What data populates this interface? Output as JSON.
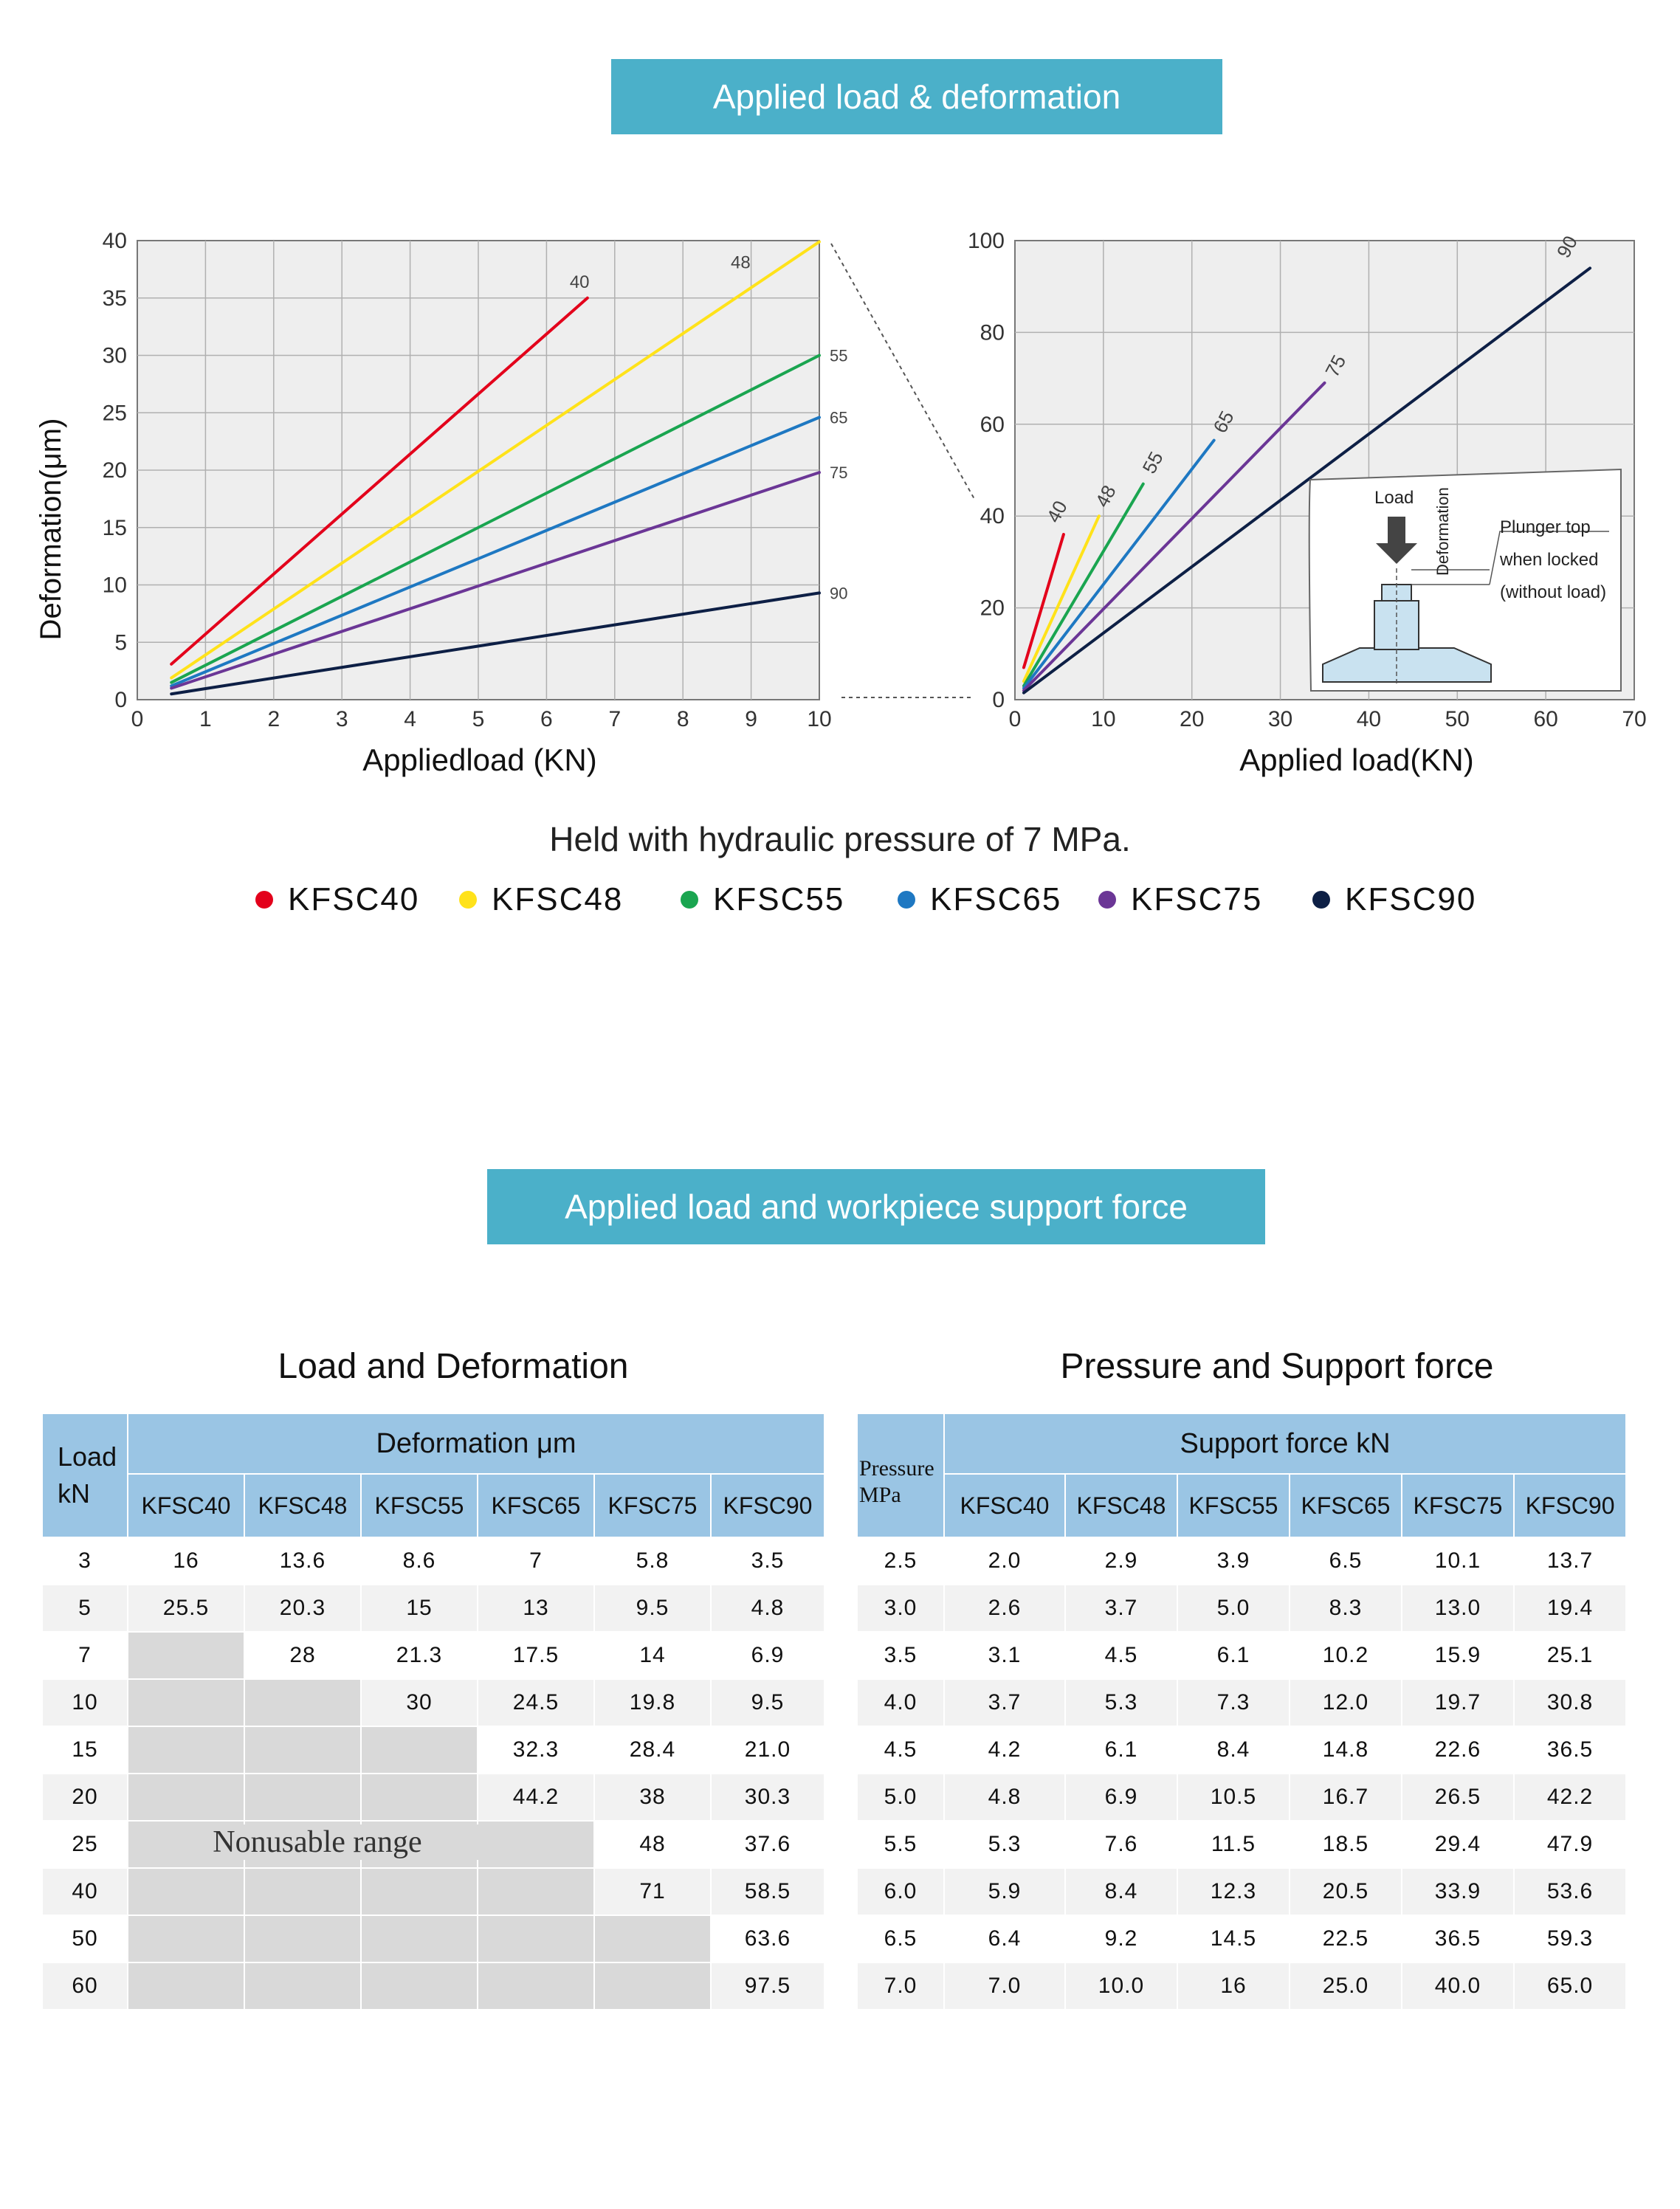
{
  "banners": {
    "deformation": "Applied load & deformation",
    "support": "Applied load and workpiece support force"
  },
  "chart_data": [
    {
      "type": "line",
      "xlabel": "Appliedload (KN)",
      "ylabel": "Deformation(μm)",
      "xlim": [
        0,
        10
      ],
      "ylim": [
        0,
        40
      ],
      "xticks": [
        0,
        1,
        2,
        3,
        4,
        5,
        6,
        7,
        8,
        9,
        10
      ],
      "yticks": [
        0,
        5,
        10,
        15,
        20,
        25,
        30,
        35,
        40
      ],
      "grid": true,
      "series": [
        {
          "name": "40",
          "color": "#e3001b",
          "x": [
            0.5,
            6.6
          ],
          "y": [
            3.1,
            35
          ]
        },
        {
          "name": "48",
          "color": "#ffe21a",
          "x": [
            0.5,
            10
          ],
          "y": [
            1.9,
            39.9
          ]
        },
        {
          "name": "55",
          "color": "#1aa550",
          "x": [
            0.5,
            10
          ],
          "y": [
            1.5,
            30
          ]
        },
        {
          "name": "65",
          "color": "#1e78c2",
          "x": [
            0.5,
            10
          ],
          "y": [
            1.2,
            24.6
          ]
        },
        {
          "name": "75",
          "color": "#6b3696",
          "x": [
            0.5,
            10
          ],
          "y": [
            1.0,
            19.8
          ]
        },
        {
          "name": "90",
          "color": "#0d1f45",
          "x": [
            0.5,
            10
          ],
          "y": [
            0.5,
            9.3
          ]
        }
      ]
    },
    {
      "type": "line",
      "xlabel": "Applied load(KN)",
      "ylabel": "",
      "xlim": [
        0,
        70
      ],
      "ylim": [
        0,
        100
      ],
      "xticks": [
        0,
        10,
        20,
        30,
        40,
        50,
        60,
        70
      ],
      "yticks": [
        0,
        20,
        40,
        60,
        80,
        100
      ],
      "grid": true,
      "series": [
        {
          "name": "40",
          "color": "#e3001b",
          "x": [
            1,
            5.5
          ],
          "y": [
            7,
            36
          ]
        },
        {
          "name": "48",
          "color": "#ffe21a",
          "x": [
            1,
            9.5
          ],
          "y": [
            4,
            40
          ]
        },
        {
          "name": "55",
          "color": "#1aa550",
          "x": [
            1,
            14.5
          ],
          "y": [
            3,
            47
          ]
        },
        {
          "name": "65",
          "color": "#1e78c2",
          "x": [
            1,
            22.5
          ],
          "y": [
            2.5,
            56.5
          ]
        },
        {
          "name": "75",
          "color": "#6b3696",
          "x": [
            1,
            35
          ],
          "y": [
            2,
            69
          ]
        },
        {
          "name": "90",
          "color": "#0d1f45",
          "x": [
            1,
            65
          ],
          "y": [
            1.5,
            94
          ]
        }
      ],
      "inset": {
        "load": "Load",
        "deformation": "Deformation",
        "note_line1": "Plunger top",
        "note_line2": "when locked",
        "note_line3": "(without load)"
      }
    },
    {
      "type": "table",
      "title": "Load and Deformation",
      "row_header_line1": "Load",
      "row_header_line2": "kN",
      "group_header": "Deformation μm",
      "columns": [
        "KFSC40",
        "KFSC48",
        "KFSC55",
        "KFSC65",
        "KFSC75",
        "KFSC90"
      ],
      "rows": [
        {
          "h": "3",
          "v": [
            "16",
            "13.6",
            "8.6",
            "7",
            "5.8",
            "3.5"
          ]
        },
        {
          "h": "5",
          "v": [
            "25.5",
            "20.3",
            "15",
            "13",
            "9.5",
            "4.8"
          ]
        },
        {
          "h": "7",
          "v": [
            "",
            "28",
            "21.3",
            "17.5",
            "14",
            "6.9"
          ]
        },
        {
          "h": "10",
          "v": [
            "",
            "",
            "30",
            "24.5",
            "19.8",
            "9.5"
          ]
        },
        {
          "h": "15",
          "v": [
            "",
            "",
            "",
            "32.3",
            "28.4",
            "21.0"
          ]
        },
        {
          "h": "20",
          "v": [
            "",
            "",
            "",
            "44.2",
            "38",
            "30.3"
          ]
        },
        {
          "h": "25",
          "v": [
            "",
            "",
            "",
            "",
            "48",
            "37.6"
          ]
        },
        {
          "h": "40",
          "v": [
            "",
            "",
            "",
            "",
            "71",
            "58.5"
          ]
        },
        {
          "h": "50",
          "v": [
            "",
            "",
            "",
            "",
            "",
            "63.6"
          ]
        },
        {
          "h": "60",
          "v": [
            "",
            "",
            "",
            "",
            "",
            "97.5"
          ]
        }
      ],
      "nonusable_label": "Nonusable range"
    },
    {
      "type": "table",
      "title": "Pressure and Support force",
      "row_header_line1": "Pressure",
      "row_header_line2": "MPa",
      "group_header": "Support force kN",
      "columns": [
        "KFSC40",
        "KFSC48",
        "KFSC55",
        "KFSC65",
        "KFSC75",
        "KFSC90"
      ],
      "rows": [
        {
          "h": "2.5",
          "v": [
            "2.0",
            "2.9",
            "3.9",
            "6.5",
            "10.1",
            "13.7"
          ]
        },
        {
          "h": "3.0",
          "v": [
            "2.6",
            "3.7",
            "5.0",
            "8.3",
            "13.0",
            "19.4"
          ]
        },
        {
          "h": "3.5",
          "v": [
            "3.1",
            "4.5",
            "6.1",
            "10.2",
            "15.9",
            "25.1"
          ]
        },
        {
          "h": "4.0",
          "v": [
            "3.7",
            "5.3",
            "7.3",
            "12.0",
            "19.7",
            "30.8"
          ]
        },
        {
          "h": "4.5",
          "v": [
            "4.2",
            "6.1",
            "8.4",
            "14.8",
            "22.6",
            "36.5"
          ]
        },
        {
          "h": "5.0",
          "v": [
            "4.8",
            "6.9",
            "10.5",
            "16.7",
            "26.5",
            "42.2"
          ]
        },
        {
          "h": "5.5",
          "v": [
            "5.3",
            "7.6",
            "11.5",
            "18.5",
            "29.4",
            "47.9"
          ]
        },
        {
          "h": "6.0",
          "v": [
            "5.9",
            "8.4",
            "12.3",
            "20.5",
            "33.9",
            "53.6"
          ]
        },
        {
          "h": "6.5",
          "v": [
            "6.4",
            "9.2",
            "14.5",
            "22.5",
            "36.5",
            "59.3"
          ]
        },
        {
          "h": "7.0",
          "v": [
            "7.0",
            "10.0",
            "16",
            "25.0",
            "40.0",
            "65.0"
          ]
        }
      ]
    }
  ],
  "note": "Held with hydraulic pressure of 7 MPa.",
  "legend": [
    {
      "label": "KFSC40",
      "color": "#e3001b"
    },
    {
      "label": "KFSC48",
      "color": "#ffe21a"
    },
    {
      "label": "KFSC55",
      "color": "#1aa550"
    },
    {
      "label": "KFSC65",
      "color": "#1e78c2"
    },
    {
      "label": "KFSC75",
      "color": "#6b3696"
    },
    {
      "label": "KFSC90",
      "color": "#0d1f45"
    }
  ]
}
